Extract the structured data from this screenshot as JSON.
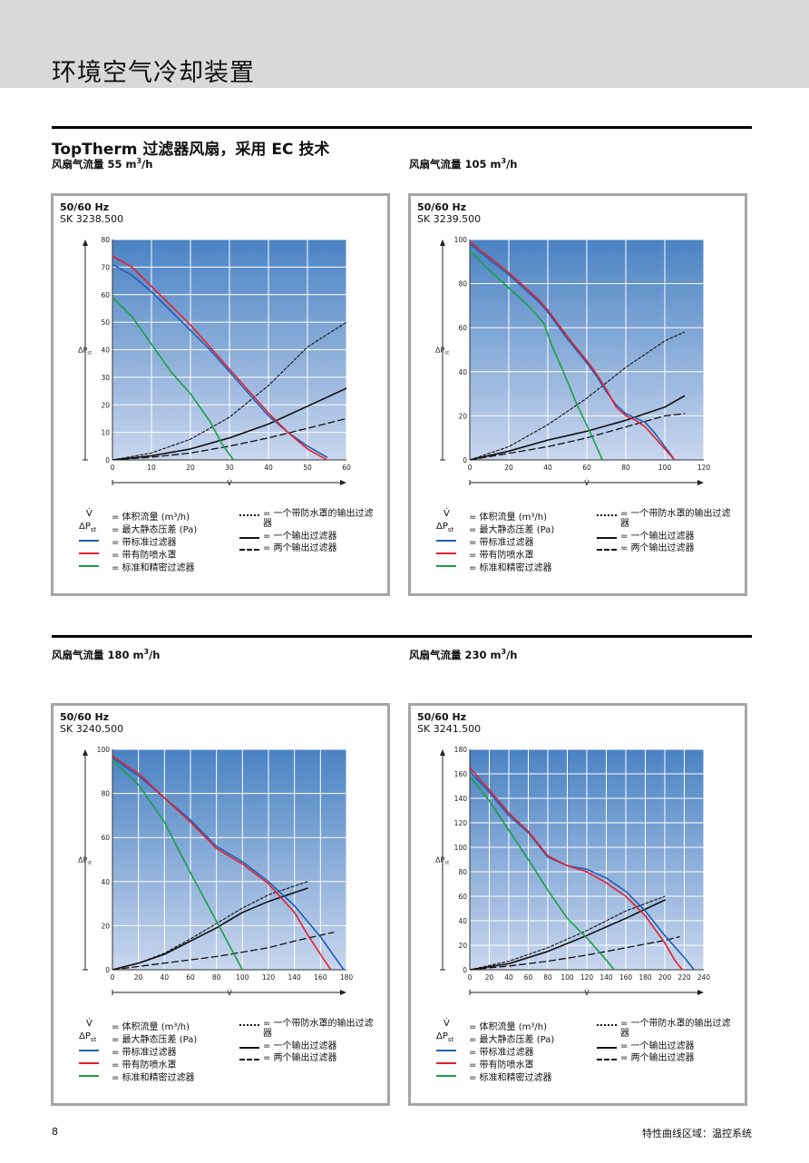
{
  "header": {
    "title": "环境空气冷却装置"
  },
  "section": {
    "title": "TopTherm 过滤器风扇，采用 EC 技术"
  },
  "legend": {
    "v_sym": "V̇",
    "v_def": "= 体积流量 (m³/h)",
    "p_sym_main": "ΔP",
    "p_sym_sub": "st",
    "p_def": "= 最大静态压差 (Pa)",
    "blue": "= 带标准过滤器",
    "red": "= 带有防喷水罩",
    "green": "= 标准和精密过滤器",
    "dotted": "= 一个带防水罩的输出过滤器",
    "solid": "= 一个输出过滤器",
    "dashed": "= 两个输出过滤器"
  },
  "colors": {
    "blue_curve": "#1f5fb4",
    "red_curve": "#e4202a",
    "green_curve": "#1a9f45",
    "black_curve": "#111111",
    "plot_top": "#4a83c3",
    "plot_bottom": "#c9d6ee",
    "panel_border": "#a6a6a6"
  },
  "footer": {
    "page_number": "8",
    "text": "特性曲线区域：温控系统"
  },
  "chart_data": [
    {
      "type": "line",
      "subtitle_prefix": "风扇气流量 ",
      "subtitle_value": "55 m",
      "subtitle_unit": "/h",
      "freq": "50/60 Hz",
      "model": "SK 3238.500",
      "xlabel": "V̇",
      "ylabel": "ΔPst",
      "xlim": [
        0,
        60
      ],
      "ylim": [
        0,
        80
      ],
      "xticks": [
        0,
        10,
        20,
        30,
        40,
        50,
        60
      ],
      "yticks": [
        0,
        10,
        20,
        30,
        40,
        50,
        60,
        70,
        80
      ],
      "series": [
        {
          "key": "blue",
          "points": [
            [
              0,
              71
            ],
            [
              5,
              67
            ],
            [
              10,
              61
            ],
            [
              15,
              54
            ],
            [
              20,
              47
            ],
            [
              25,
              40
            ],
            [
              30,
              32
            ],
            [
              35,
              24
            ],
            [
              40,
              16
            ],
            [
              45,
              10
            ],
            [
              50,
              5
            ],
            [
              55,
              1
            ]
          ]
        },
        {
          "key": "red",
          "points": [
            [
              0,
              74
            ],
            [
              5,
              70
            ],
            [
              10,
              63
            ],
            [
              15,
              56
            ],
            [
              20,
              49
            ],
            [
              25,
              41
            ],
            [
              30,
              33
            ],
            [
              35,
              25
            ],
            [
              40,
              17
            ],
            [
              45,
              10
            ],
            [
              50,
              4
            ],
            [
              55,
              0
            ]
          ]
        },
        {
          "key": "green",
          "points": [
            [
              0,
              59
            ],
            [
              5,
              52
            ],
            [
              10,
              42
            ],
            [
              15,
              32
            ],
            [
              20,
              24
            ],
            [
              25,
              14
            ],
            [
              28,
              6
            ],
            [
              31,
              0
            ]
          ]
        },
        {
          "key": "dotted",
          "points": [
            [
              0,
              0
            ],
            [
              10,
              2.5
            ],
            [
              20,
              7.5
            ],
            [
              30,
              15.5
            ],
            [
              40,
              27
            ],
            [
              50,
              41
            ],
            [
              60,
              50
            ]
          ]
        },
        {
          "key": "solid",
          "points": [
            [
              0,
              0
            ],
            [
              10,
              1.5
            ],
            [
              20,
              4
            ],
            [
              30,
              8
            ],
            [
              40,
              13
            ],
            [
              50,
              19.5
            ],
            [
              60,
              26
            ]
          ]
        },
        {
          "key": "dashed",
          "points": [
            [
              0,
              0
            ],
            [
              10,
              1
            ],
            [
              20,
              2.5
            ],
            [
              30,
              5
            ],
            [
              40,
              8
            ],
            [
              50,
              11.5
            ],
            [
              60,
              15
            ]
          ]
        }
      ]
    },
    {
      "type": "line",
      "subtitle_prefix": "风扇气流量 ",
      "subtitle_value": "105 m",
      "subtitle_unit": "/h",
      "freq": "50/60 Hz",
      "model": "SK 3239.500",
      "xlabel": "V̇",
      "ylabel": "ΔPst",
      "xlim": [
        0,
        120
      ],
      "ylim": [
        0,
        100
      ],
      "xticks": [
        0,
        20,
        40,
        60,
        80,
        100,
        120
      ],
      "yticks": [
        0,
        20,
        40,
        60,
        80,
        100
      ],
      "series": [
        {
          "key": "blue",
          "points": [
            [
              0,
              98
            ],
            [
              10,
              91
            ],
            [
              20,
              84
            ],
            [
              30,
              76
            ],
            [
              35,
              72
            ],
            [
              40,
              67
            ],
            [
              50,
              55
            ],
            [
              60,
              44
            ],
            [
              65,
              38
            ],
            [
              70,
              31
            ],
            [
              75,
              25
            ],
            [
              80,
              21
            ],
            [
              85,
              19
            ],
            [
              90,
              17
            ],
            [
              95,
              12
            ],
            [
              100,
              6
            ],
            [
              105,
              0
            ]
          ]
        },
        {
          "key": "red",
          "points": [
            [
              0,
              99
            ],
            [
              10,
              92
            ],
            [
              20,
              85
            ],
            [
              30,
              77
            ],
            [
              35,
              73
            ],
            [
              40,
              68
            ],
            [
              50,
              56
            ],
            [
              60,
              45
            ],
            [
              65,
              39
            ],
            [
              70,
              32
            ],
            [
              75,
              24
            ],
            [
              80,
              20
            ],
            [
              85,
              18
            ],
            [
              90,
              15
            ],
            [
              95,
              10
            ],
            [
              100,
              5
            ],
            [
              105,
              0
            ]
          ]
        },
        {
          "key": "green",
          "points": [
            [
              0,
              95
            ],
            [
              10,
              86
            ],
            [
              20,
              78
            ],
            [
              30,
              70
            ],
            [
              38,
              62
            ],
            [
              42,
              52
            ],
            [
              48,
              40
            ],
            [
              55,
              25
            ],
            [
              62,
              12
            ],
            [
              68,
              0
            ]
          ]
        },
        {
          "key": "dotted",
          "points": [
            [
              0,
              0
            ],
            [
              20,
              6
            ],
            [
              40,
              16
            ],
            [
              60,
              28
            ],
            [
              80,
              42
            ],
            [
              100,
              54
            ],
            [
              110,
              58
            ]
          ]
        },
        {
          "key": "solid",
          "points": [
            [
              0,
              0
            ],
            [
              20,
              4
            ],
            [
              40,
              9
            ],
            [
              60,
              13
            ],
            [
              80,
              18
            ],
            [
              100,
              24
            ],
            [
              110,
              29
            ]
          ]
        },
        {
          "key": "dashed",
          "points": [
            [
              0,
              0
            ],
            [
              20,
              3
            ],
            [
              40,
              6
            ],
            [
              60,
              10
            ],
            [
              80,
              15
            ],
            [
              100,
              20
            ],
            [
              110,
              21
            ]
          ]
        }
      ]
    },
    {
      "type": "line",
      "subtitle_prefix": "风扇气流量 ",
      "subtitle_value": "180 m",
      "subtitle_unit": "/h",
      "freq": "50/60 Hz",
      "model": "SK 3240.500",
      "xlabel": "V̇",
      "ylabel": "ΔPst",
      "xlim": [
        0,
        180
      ],
      "ylim": [
        0,
        100
      ],
      "xticks": [
        0,
        20,
        40,
        60,
        80,
        100,
        120,
        140,
        160,
        180
      ],
      "yticks": [
        0,
        20,
        40,
        60,
        80,
        100
      ],
      "series": [
        {
          "key": "blue",
          "points": [
            [
              0,
              96
            ],
            [
              20,
              88
            ],
            [
              40,
              78
            ],
            [
              60,
              68
            ],
            [
              80,
              56
            ],
            [
              100,
              49
            ],
            [
              120,
              40
            ],
            [
              140,
              29
            ],
            [
              160,
              15
            ],
            [
              178,
              0
            ]
          ]
        },
        {
          "key": "red",
          "points": [
            [
              0,
              97
            ],
            [
              20,
              89
            ],
            [
              40,
              78
            ],
            [
              60,
              67
            ],
            [
              80,
              55
            ],
            [
              100,
              48
            ],
            [
              120,
              39
            ],
            [
              140,
              26
            ],
            [
              150,
              16
            ],
            [
              160,
              7
            ],
            [
              168,
              0
            ]
          ]
        },
        {
          "key": "green",
          "points": [
            [
              0,
              95
            ],
            [
              20,
              84
            ],
            [
              40,
              67
            ],
            [
              60,
              44
            ],
            [
              80,
              22
            ],
            [
              100,
              0
            ]
          ]
        },
        {
          "key": "dotted",
          "points": [
            [
              0,
              0
            ],
            [
              20,
              3
            ],
            [
              40,
              7.5
            ],
            [
              60,
              14
            ],
            [
              80,
              21
            ],
            [
              100,
              28
            ],
            [
              120,
              34
            ],
            [
              140,
              38
            ],
            [
              150,
              40
            ]
          ]
        },
        {
          "key": "solid",
          "points": [
            [
              0,
              0
            ],
            [
              20,
              3
            ],
            [
              40,
              7
            ],
            [
              60,
              13
            ],
            [
              80,
              19
            ],
            [
              100,
              26
            ],
            [
              120,
              31
            ],
            [
              140,
              35
            ],
            [
              150,
              37
            ]
          ]
        },
        {
          "key": "dashed",
          "points": [
            [
              0,
              0
            ],
            [
              40,
              3
            ],
            [
              80,
              6
            ],
            [
              120,
              10
            ],
            [
              140,
              13
            ],
            [
              170,
              17
            ]
          ]
        }
      ]
    },
    {
      "type": "line",
      "subtitle_prefix": "风扇气流量 ",
      "subtitle_value": "230 m",
      "subtitle_unit": "/h",
      "freq": "50/60 Hz",
      "model": "SK 3241.500",
      "xlabel": "V̇",
      "ylabel": "ΔPst",
      "xlim": [
        0,
        240
      ],
      "ylim": [
        0,
        180
      ],
      "xticks": [
        0,
        20,
        40,
        60,
        80,
        100,
        120,
        140,
        160,
        180,
        200,
        220,
        240
      ],
      "yticks": [
        0,
        20,
        40,
        60,
        80,
        100,
        120,
        140,
        160,
        180
      ],
      "series": [
        {
          "key": "blue",
          "points": [
            [
              0,
              162
            ],
            [
              20,
              145
            ],
            [
              40,
              126
            ],
            [
              60,
              112
            ],
            [
              80,
              92
            ],
            [
              100,
              85
            ],
            [
              120,
              82
            ],
            [
              140,
              75
            ],
            [
              160,
              64
            ],
            [
              180,
              48
            ],
            [
              200,
              28
            ],
            [
              220,
              10
            ],
            [
              230,
              0
            ]
          ]
        },
        {
          "key": "red",
          "points": [
            [
              0,
              165
            ],
            [
              20,
              147
            ],
            [
              40,
              128
            ],
            [
              60,
              113
            ],
            [
              80,
              93
            ],
            [
              100,
              85
            ],
            [
              120,
              80
            ],
            [
              140,
              71
            ],
            [
              160,
              60
            ],
            [
              180,
              44
            ],
            [
              200,
              22
            ],
            [
              210,
              8
            ],
            [
              218,
              0
            ]
          ]
        },
        {
          "key": "green",
          "points": [
            [
              0,
              158
            ],
            [
              20,
              138
            ],
            [
              40,
              114
            ],
            [
              60,
              90
            ],
            [
              80,
              65
            ],
            [
              100,
              42
            ],
            [
              120,
              26
            ],
            [
              140,
              8
            ],
            [
              148,
              0
            ]
          ]
        },
        {
          "key": "dotted",
          "points": [
            [
              0,
              0
            ],
            [
              40,
              7
            ],
            [
              80,
              18
            ],
            [
              120,
              32
            ],
            [
              160,
              48
            ],
            [
              200,
              60
            ]
          ]
        },
        {
          "key": "solid",
          "points": [
            [
              0,
              0
            ],
            [
              40,
              5
            ],
            [
              80,
              15
            ],
            [
              120,
              28
            ],
            [
              160,
              42
            ],
            [
              200,
              57
            ]
          ]
        },
        {
          "key": "dashed",
          "points": [
            [
              0,
              0
            ],
            [
              40,
              3
            ],
            [
              80,
              7
            ],
            [
              120,
              12
            ],
            [
              160,
              18
            ],
            [
              200,
              24
            ],
            [
              215,
              27
            ]
          ]
        }
      ]
    }
  ]
}
